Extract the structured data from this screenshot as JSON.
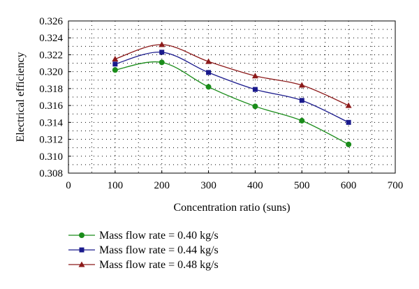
{
  "chart_data": {
    "type": "line",
    "xlabel": "Concentration ratio (suns)",
    "ylabel": "Electrical efficiency",
    "xlim": [
      0,
      700
    ],
    "ylim": [
      0.308,
      0.326
    ],
    "x_ticks": [
      "0",
      "100",
      "200",
      "300",
      "400",
      "500",
      "600",
      "700"
    ],
    "y_ticks": [
      "0.308",
      "0.310",
      "0.312",
      "0.314",
      "0.316",
      "0.318",
      "0.320",
      "0.322",
      "0.324",
      "0.326"
    ],
    "grid": "dotted",
    "legend_position": "bottom",
    "x": [
      100,
      200,
      300,
      400,
      500,
      600
    ],
    "series": [
      {
        "name": "Mass flow rate = 0.40 kg/s",
        "marker": "circle",
        "color": "#1a8c1a",
        "values": [
          0.3202,
          0.3211,
          0.3182,
          0.3159,
          0.3142,
          0.3114
        ]
      },
      {
        "name": "Mass flow rate = 0.44 kg/s",
        "marker": "square",
        "color": "#1a1a8c",
        "values": [
          0.3209,
          0.3223,
          0.3199,
          0.3179,
          0.3166,
          0.314
        ]
      },
      {
        "name": "Mass flow rate = 0.48 kg/s",
        "marker": "triangle",
        "color": "#8c1a1a",
        "values": [
          0.3215,
          0.3232,
          0.3212,
          0.3195,
          0.3184,
          0.316
        ]
      }
    ]
  }
}
